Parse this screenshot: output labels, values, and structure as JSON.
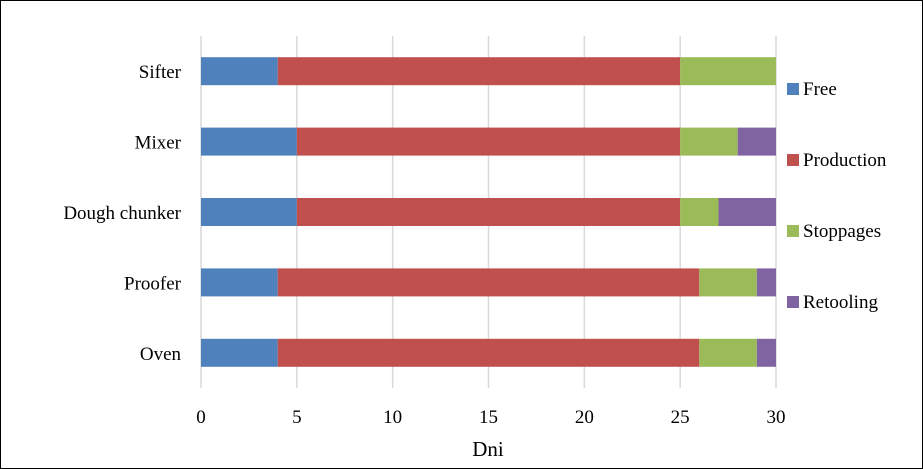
{
  "chart_data": {
    "type": "bar",
    "orientation": "horizontal",
    "stacked": true,
    "categories": [
      "Sifter",
      "Mixer",
      "Dough chunker",
      "Proofer",
      "Oven"
    ],
    "series": [
      {
        "name": "Free",
        "color": "#4F81BD",
        "values": [
          4,
          5,
          5,
          4,
          4
        ]
      },
      {
        "name": "Production",
        "color": "#C0504D",
        "values": [
          21,
          20,
          20,
          22,
          22
        ]
      },
      {
        "name": "Stoppages",
        "color": "#9BBB59",
        "values": [
          5,
          3,
          2,
          3,
          3
        ]
      },
      {
        "name": "Retooling",
        "color": "#8064A2",
        "values": [
          0,
          2,
          3,
          1,
          1
        ]
      }
    ],
    "xlabel": "Dni",
    "ylabel": "",
    "xlim": [
      0,
      30
    ],
    "xticks": [
      0,
      5,
      10,
      15,
      20,
      25,
      30
    ],
    "grid": "vertical",
    "grid_color": "#D9D9D9",
    "legend_position": "right"
  }
}
